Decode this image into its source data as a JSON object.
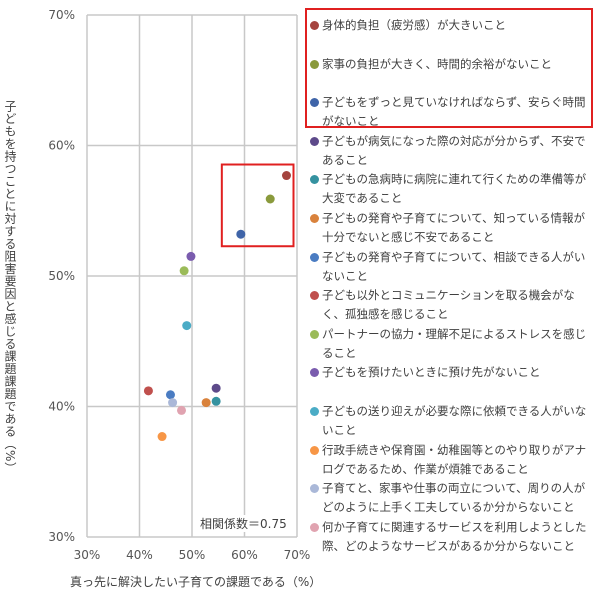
{
  "chart_data": {
    "type": "scatter",
    "xlabel": "真っ先に解決したい子育ての課題である（%）",
    "ylabel": "子どもを持つことに対する阻害要因と感じる課題課題である（%）",
    "xlim": [
      30,
      70
    ],
    "ylim": [
      30,
      70
    ],
    "xticks": [
      "30%",
      "40%",
      "50%",
      "60%",
      "70%"
    ],
    "yticks": [
      "30%",
      "40%",
      "50%",
      "60%",
      "70%"
    ],
    "grid": true,
    "legend_position": "right",
    "annotation": "相関係数＝0.75",
    "highlighted_series": [
      0,
      1,
      2
    ],
    "highlight_color": "#e02020",
    "series": [
      {
        "name": "身体的負担（疲労感）が大きいこと",
        "x": 68.0,
        "y": 57.7,
        "color": "#a5443f"
      },
      {
        "name": "家事の負担が大きく、時間的余裕がないこと",
        "x": 64.9,
        "y": 55.9,
        "color": "#8a9a3c"
      },
      {
        "name": "子どもをずっと見ていなければならず、安らぐ時間がないこと",
        "x": 59.3,
        "y": 53.2,
        "color": "#3f64a8"
      },
      {
        "name": "子どもが病気になった際の対応が分からず、不安であること",
        "x": 54.6,
        "y": 41.4,
        "color": "#5d4a8a"
      },
      {
        "name": "子どもの急病時に病院に連れて行くための準備等が大変であること",
        "x": 54.6,
        "y": 40.4,
        "color": "#3592a0"
      },
      {
        "name": "子どもの発育や子育てについて、知っている情報が十分でないと感じ不安であること",
        "x": 52.7,
        "y": 40.3,
        "color": "#d9823c"
      },
      {
        "name": "子どもの発育や子育てについて、相談できる人がいないこと",
        "x": 45.9,
        "y": 40.9,
        "color": "#4a7cc2"
      },
      {
        "name": "子ども以外とコミュニケーションを取る機会がなく、孤独感を感じること",
        "x": 41.7,
        "y": 41.2,
        "color": "#c0504d"
      },
      {
        "name": "パートナーの協力・理解不足によるストレスを感じること",
        "x": 48.5,
        "y": 50.4,
        "color": "#9bbb59"
      },
      {
        "name": "子どもを預けたいときに預け先がないこと",
        "x": 49.8,
        "y": 51.5,
        "color": "#7a5cae"
      },
      {
        "name": "子どもの送り迎えが必要な際に依頼できる人がいないこと",
        "x": 49.0,
        "y": 46.2,
        "color": "#4bacc6"
      },
      {
        "name": "行政手続きや保育園・幼稚園等とのやり取りがアナログであるため、作業が煩雑であること",
        "x": 44.3,
        "y": 37.7,
        "color": "#f79646"
      },
      {
        "name": "子育てと、家事や仕事の両立について、周りの人がどのように上手く工夫しているか分からないこと",
        "x": 46.3,
        "y": 40.3,
        "color": "#aab8d8"
      },
      {
        "name": "何か子育てに関連するサービスを利用しようとした際、どのようなサービスがあるか分からないこと",
        "x": 48.0,
        "y": 39.7,
        "color": "#e0a3b0"
      }
    ]
  }
}
